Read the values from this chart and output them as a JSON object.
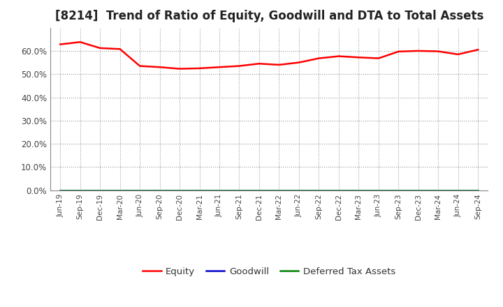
{
  "title": "[8214]  Trend of Ratio of Equity, Goodwill and DTA to Total Assets",
  "x_labels": [
    "Jun-19",
    "Sep-19",
    "Dec-19",
    "Mar-20",
    "Jun-20",
    "Sep-20",
    "Dec-20",
    "Mar-21",
    "Jun-21",
    "Sep-21",
    "Dec-21",
    "Mar-22",
    "Jun-22",
    "Sep-22",
    "Dec-22",
    "Mar-23",
    "Jun-23",
    "Sep-23",
    "Dec-23",
    "Mar-24",
    "Jun-24",
    "Sep-24"
  ],
  "equity": [
    0.628,
    0.638,
    0.612,
    0.608,
    0.535,
    0.53,
    0.523,
    0.525,
    0.53,
    0.535,
    0.545,
    0.54,
    0.55,
    0.568,
    0.577,
    0.572,
    0.568,
    0.597,
    0.6,
    0.598,
    0.585,
    0.605
  ],
  "goodwill": [
    0.0,
    0.0,
    0.0,
    0.0,
    0.0,
    0.0,
    0.0,
    0.0,
    0.0,
    0.0,
    0.0,
    0.0,
    0.0,
    0.0,
    0.0,
    0.0,
    0.0,
    0.0,
    0.0,
    0.0,
    0.0,
    0.0
  ],
  "dta": [
    0.0,
    0.0,
    0.0,
    0.0,
    0.0,
    0.0,
    0.0,
    0.0,
    0.0,
    0.0,
    0.0,
    0.0,
    0.0,
    0.0,
    0.0,
    0.0,
    0.0,
    0.0,
    0.0,
    0.0,
    0.0,
    0.0
  ],
  "equity_color": "#ff0000",
  "goodwill_color": "#0000cd",
  "dta_color": "#008000",
  "ylim": [
    0.0,
    0.7
  ],
  "yticks": [
    0.0,
    0.1,
    0.2,
    0.3,
    0.4,
    0.5,
    0.6
  ],
  "background_color": "#ffffff",
  "grid_color": "#999999",
  "title_fontsize": 12,
  "legend_labels": [
    "Equity",
    "Goodwill",
    "Deferred Tax Assets"
  ]
}
